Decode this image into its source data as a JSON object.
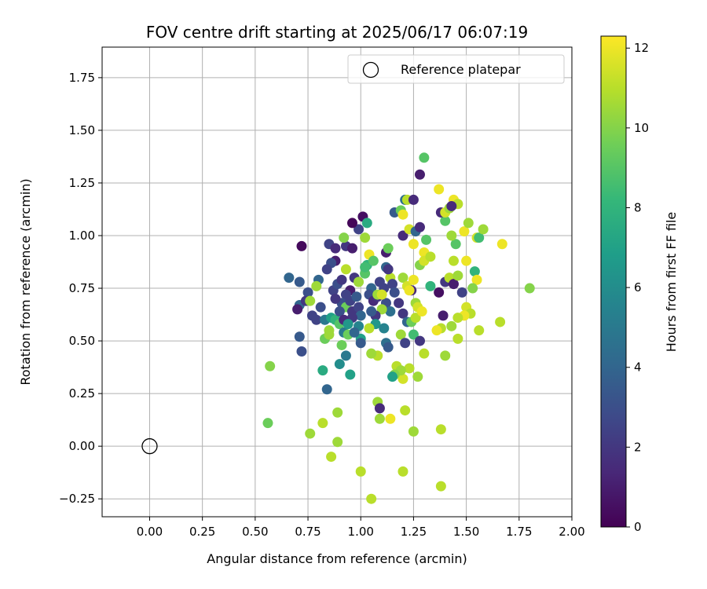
{
  "chart_data": {
    "type": "scatter",
    "title": "FOV centre drift starting at 2025/06/17 06:07:19",
    "xlabel": "Angular distance from reference (arcmin)",
    "ylabel": "Rotation from reference (arcmin)",
    "xlim": [
      -0.225,
      2.0
    ],
    "ylim": [
      -0.335,
      1.895
    ],
    "xticks": [
      0.0,
      0.25,
      0.5,
      0.75,
      1.0,
      1.25,
      1.5,
      1.75,
      2.0
    ],
    "xtick_labels": [
      "0.00",
      "0.25",
      "0.50",
      "0.75",
      "1.00",
      "1.25",
      "1.50",
      "1.75",
      "2.00"
    ],
    "yticks": [
      -0.25,
      0.0,
      0.25,
      0.5,
      0.75,
      1.0,
      1.25,
      1.5,
      1.75
    ],
    "ytick_labels": [
      "−0.25",
      "0.00",
      "0.25",
      "0.50",
      "0.75",
      "1.00",
      "1.25",
      "1.50",
      "1.75"
    ],
    "grid": true,
    "legend_position": "top-right",
    "legend": [
      {
        "label": "Reference platepar",
        "marker": "open-circle"
      }
    ],
    "reference_point": {
      "x": 0.0,
      "y": 0.0
    },
    "colorbar": {
      "label": "Hours from first FF file",
      "colormap": "viridis",
      "range": [
        0,
        12.3
      ],
      "ticks": [
        0,
        2,
        4,
        6,
        8,
        10,
        12
      ],
      "tick_labels": [
        "0",
        "2",
        "4",
        "6",
        "8",
        "10",
        "12"
      ],
      "stops": [
        "#440154",
        "#482878",
        "#3e4989",
        "#31688e",
        "#26828e",
        "#1f9e89",
        "#35b779",
        "#6ece58",
        "#b5de2b",
        "#fde725"
      ]
    },
    "points": [
      [
        0.72,
        0.95,
        0.3
      ],
      [
        0.85,
        0.96,
        2.5
      ],
      [
        0.88,
        0.94,
        1.5
      ],
      [
        0.93,
        0.95,
        2.0
      ],
      [
        0.96,
        0.94,
        1.0
      ],
      [
        0.99,
        1.03,
        2.5
      ],
      [
        0.96,
        1.06,
        0.2
      ],
      [
        1.01,
        1.09,
        0.5
      ],
      [
        1.03,
        1.06,
        7.5
      ],
      [
        0.88,
        0.88,
        1.0
      ],
      [
        0.86,
        0.87,
        3.0
      ],
      [
        0.84,
        0.84,
        2.5
      ],
      [
        0.8,
        0.79,
        4.0
      ],
      [
        0.79,
        0.76,
        10.5
      ],
      [
        0.75,
        0.73,
        3.0
      ],
      [
        0.71,
        0.78,
        3.5
      ],
      [
        0.66,
        0.8,
        4.0
      ],
      [
        0.71,
        0.67,
        4.0
      ],
      [
        0.74,
        0.69,
        2.0
      ],
      [
        0.77,
        0.62,
        2.5
      ],
      [
        0.79,
        0.6,
        2.5
      ],
      [
        0.81,
        0.66,
        3.0
      ],
      [
        0.83,
        0.6,
        5.0
      ],
      [
        0.86,
        0.61,
        7.0
      ],
      [
        0.85,
        0.55,
        10.5
      ],
      [
        0.88,
        0.6,
        8.0
      ],
      [
        0.9,
        0.58,
        9.0
      ],
      [
        0.92,
        0.54,
        5.0
      ],
      [
        0.94,
        0.53,
        9.5
      ],
      [
        0.91,
        0.48,
        9.5
      ],
      [
        0.93,
        0.43,
        5.0
      ],
      [
        0.9,
        0.39,
        6.0
      ],
      [
        0.95,
        0.34,
        7.0
      ],
      [
        0.82,
        0.36,
        7.5
      ],
      [
        0.84,
        0.27,
        4.0
      ],
      [
        0.71,
        0.52,
        3.5
      ],
      [
        0.72,
        0.45,
        3.0
      ],
      [
        0.7,
        0.65,
        1.0
      ],
      [
        0.76,
        0.69,
        10.5
      ],
      [
        0.87,
        0.74,
        2.5
      ],
      [
        0.89,
        0.77,
        3.0
      ],
      [
        0.91,
        0.79,
        2.0
      ],
      [
        0.93,
        0.84,
        11.0
      ],
      [
        0.97,
        0.8,
        2.0
      ],
      [
        0.99,
        0.78,
        10.5
      ],
      [
        0.95,
        0.74,
        1.0
      ],
      [
        0.93,
        0.72,
        2.5
      ],
      [
        0.91,
        0.68,
        3.0
      ],
      [
        0.93,
        0.66,
        9.5
      ],
      [
        0.96,
        0.64,
        2.0
      ],
      [
        0.99,
        0.66,
        2.5
      ],
      [
        1.0,
        0.62,
        4.0
      ],
      [
        0.96,
        0.61,
        2.0
      ],
      [
        0.99,
        0.57,
        5.5
      ],
      [
        1.0,
        0.51,
        7.0
      ],
      [
        1.0,
        0.49,
        3.5
      ],
      [
        1.02,
        0.82,
        9.0
      ],
      [
        1.03,
        0.86,
        8.0
      ],
      [
        1.04,
        0.91,
        12.0
      ],
      [
        1.02,
        0.99,
        10.5
      ],
      [
        1.06,
        0.88,
        9.0
      ],
      [
        1.05,
        0.75,
        4.0
      ],
      [
        1.04,
        0.72,
        3.0
      ],
      [
        1.06,
        0.69,
        1.5
      ],
      [
        1.08,
        0.71,
        2.0
      ],
      [
        1.11,
        0.75,
        2.5
      ],
      [
        1.09,
        0.78,
        2.5
      ],
      [
        1.12,
        0.85,
        4.0
      ],
      [
        1.12,
        0.92,
        1.0
      ],
      [
        1.13,
        0.94,
        9.5
      ],
      [
        1.14,
        0.8,
        11.0
      ],
      [
        1.15,
        0.77,
        2.5
      ],
      [
        1.12,
        0.68,
        3.0
      ],
      [
        1.14,
        0.64,
        4.5
      ],
      [
        1.1,
        0.65,
        10.5
      ],
      [
        1.07,
        0.62,
        2.0
      ],
      [
        1.07,
        0.58,
        6.5
      ],
      [
        1.11,
        0.56,
        5.5
      ],
      [
        1.12,
        0.49,
        4.5
      ],
      [
        1.13,
        0.47,
        3.5
      ],
      [
        1.08,
        0.72,
        10.5
      ],
      [
        1.05,
        0.64,
        3.5
      ],
      [
        1.04,
        0.56,
        11.0
      ],
      [
        1.16,
        1.11,
        3.5
      ],
      [
        1.19,
        1.12,
        9.5
      ],
      [
        1.2,
        1.1,
        12.0
      ],
      [
        1.21,
        1.17,
        4.5
      ],
      [
        1.22,
        1.17,
        11.0
      ],
      [
        1.25,
        1.17,
        1.5
      ],
      [
        1.28,
        1.29,
        1.0
      ],
      [
        1.3,
        1.37,
        9.0
      ],
      [
        1.2,
        1.0,
        1.5
      ],
      [
        1.23,
        1.03,
        11.5
      ],
      [
        1.26,
        1.02,
        4.0
      ],
      [
        1.28,
        1.04,
        1.5
      ],
      [
        1.25,
        0.96,
        12.0
      ],
      [
        1.28,
        0.86,
        10.0
      ],
      [
        1.3,
        0.92,
        12.0
      ],
      [
        1.31,
        0.98,
        9.0
      ],
      [
        1.3,
        0.88,
        11.5
      ],
      [
        1.33,
        0.9,
        11.0
      ],
      [
        1.2,
        0.8,
        10.5
      ],
      [
        1.22,
        0.76,
        11.5
      ],
      [
        1.25,
        0.79,
        12.0
      ],
      [
        1.24,
        0.74,
        1.5
      ],
      [
        1.23,
        0.74,
        12.0
      ],
      [
        1.26,
        0.68,
        10.5
      ],
      [
        1.2,
        0.63,
        2.0
      ],
      [
        1.22,
        0.59,
        4.0
      ],
      [
        1.24,
        0.59,
        9.5
      ],
      [
        1.26,
        0.61,
        11.0
      ],
      [
        1.19,
        0.53,
        10.5
      ],
      [
        1.21,
        0.49,
        2.5
      ],
      [
        1.25,
        0.53,
        8.5
      ],
      [
        1.28,
        0.5,
        2.0
      ],
      [
        1.27,
        0.66,
        11.5
      ],
      [
        1.29,
        0.64,
        12.0
      ],
      [
        1.33,
        0.76,
        8.0
      ],
      [
        1.37,
        0.73,
        0.5
      ],
      [
        1.4,
        0.78,
        2.0
      ],
      [
        1.42,
        0.8,
        11.0
      ],
      [
        1.44,
        0.77,
        1.0
      ],
      [
        1.46,
        0.81,
        10.5
      ],
      [
        1.48,
        0.73,
        2.5
      ],
      [
        1.44,
        0.88,
        11.0
      ],
      [
        1.45,
        0.96,
        9.0
      ],
      [
        1.43,
        1.0,
        10.5
      ],
      [
        1.4,
        1.07,
        9.0
      ],
      [
        1.38,
        1.11,
        1.5
      ],
      [
        1.4,
        1.11,
        11.5
      ],
      [
        1.42,
        1.13,
        10.5
      ],
      [
        1.44,
        1.17,
        12.0
      ],
      [
        1.46,
        1.15,
        11.0
      ],
      [
        1.37,
        1.22,
        12.0
      ],
      [
        1.43,
        1.14,
        1.5
      ],
      [
        1.49,
        1.02,
        12.0
      ],
      [
        1.51,
        1.06,
        10.5
      ],
      [
        1.55,
        0.99,
        11.5
      ],
      [
        1.56,
        0.99,
        8.5
      ],
      [
        1.58,
        1.03,
        10.5
      ],
      [
        1.5,
        0.88,
        12.0
      ],
      [
        1.54,
        0.83,
        8.0
      ],
      [
        1.55,
        0.79,
        12.0
      ],
      [
        1.53,
        0.75,
        10.0
      ],
      [
        1.5,
        0.66,
        11.5
      ],
      [
        1.52,
        0.63,
        11.0
      ],
      [
        1.49,
        0.62,
        12.0
      ],
      [
        1.46,
        0.61,
        11.0
      ],
      [
        1.43,
        0.57,
        10.5
      ],
      [
        1.39,
        0.62,
        1.0
      ],
      [
        1.38,
        0.56,
        11.0
      ],
      [
        1.36,
        0.55,
        12.0
      ],
      [
        1.46,
        0.51,
        11.0
      ],
      [
        1.56,
        0.55,
        11.0
      ],
      [
        1.67,
        0.96,
        12.0
      ],
      [
        1.66,
        0.59,
        11.0
      ],
      [
        1.8,
        0.75,
        10.0
      ],
      [
        1.4,
        0.43,
        10.5
      ],
      [
        1.3,
        0.44,
        11.0
      ],
      [
        1.23,
        0.37,
        11.0
      ],
      [
        1.2,
        0.32,
        11.5
      ],
      [
        1.17,
        0.38,
        11.0
      ],
      [
        1.19,
        0.36,
        10.5
      ],
      [
        1.16,
        0.34,
        10.0
      ],
      [
        1.15,
        0.33,
        7.0
      ],
      [
        1.27,
        0.33,
        10.5
      ],
      [
        1.08,
        0.43,
        11.0
      ],
      [
        1.05,
        0.44,
        10.5
      ],
      [
        1.08,
        0.21,
        10.5
      ],
      [
        1.09,
        0.18,
        1.5
      ],
      [
        1.09,
        0.13,
        10.5
      ],
      [
        1.14,
        0.13,
        12.0
      ],
      [
        1.21,
        0.17,
        11.0
      ],
      [
        1.25,
        0.07,
        10.5
      ],
      [
        1.38,
        0.08,
        11.0
      ],
      [
        0.57,
        0.38,
        10.0
      ],
      [
        0.56,
        0.11,
        9.5
      ],
      [
        0.76,
        0.06,
        10.5
      ],
      [
        0.82,
        0.11,
        11.0
      ],
      [
        0.89,
        0.16,
        10.5
      ],
      [
        0.89,
        0.02,
        10.5
      ],
      [
        0.86,
        -0.05,
        11.0
      ],
      [
        1.0,
        -0.12,
        11.0
      ],
      [
        1.05,
        -0.25,
        11.0
      ],
      [
        1.2,
        -0.12,
        11.0
      ],
      [
        1.38,
        -0.19,
        11.0
      ],
      [
        0.9,
        0.64,
        3.0
      ],
      [
        0.88,
        0.7,
        2.0
      ],
      [
        0.95,
        0.69,
        2.5
      ],
      [
        0.98,
        0.71,
        3.5
      ],
      [
        0.92,
        0.99,
        10.0
      ],
      [
        0.92,
        0.6,
        1.5
      ],
      [
        0.94,
        0.58,
        6.5
      ],
      [
        0.83,
        0.51,
        9.5
      ],
      [
        0.85,
        0.53,
        10.5
      ],
      [
        0.97,
        0.54,
        4.0
      ],
      [
        1.02,
        0.85,
        8.5
      ],
      [
        1.1,
        0.72,
        11.5
      ],
      [
        1.16,
        0.73,
        3.0
      ],
      [
        1.18,
        0.68,
        2.0
      ],
      [
        1.13,
        0.84,
        2.0
      ]
    ]
  }
}
